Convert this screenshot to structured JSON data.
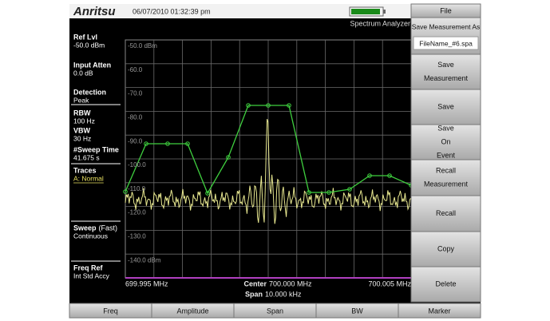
{
  "header": {
    "brand": "Anritsu",
    "datetime": "06/07/2010 01:32:39 pm",
    "mode": "Spectrum Analyzer"
  },
  "left_panel": [
    {
      "label": "Ref Lvl",
      "value": "-50.0 dBm"
    },
    {
      "label": "Input Atten",
      "value": "0.0 dB"
    },
    {
      "label": "Detection",
      "value": "Peak"
    },
    {
      "label": "RBW",
      "value": "100 Hz"
    },
    {
      "label": "VBW",
      "value": "30 Hz"
    },
    {
      "label": "#Sweep Time",
      "value": "41.675 s"
    },
    {
      "label": "Traces",
      "value": "A: Normal"
    },
    {
      "label": "Sweep",
      "note": "(Fast)",
      "value": "Continuous"
    },
    {
      "label": "Freq Ref",
      "value": "Int Std Accy"
    }
  ],
  "plot": {
    "y_labels": [
      "-50.0 dBm",
      "-60.0",
      "-70.0",
      "-80.0",
      "-90.0",
      "-100.0",
      "-110.0",
      "-120.0",
      "-130.0",
      "-140.0 dBm"
    ],
    "start": "699.995 MHz",
    "center_label": "Center",
    "center": "700.000 MHz",
    "stop": "700.005 MHz",
    "span_label": "Span",
    "span": "10.000 kHz"
  },
  "menu": {
    "title": "File",
    "buttons": [
      {
        "lines": [
          "Save Measurement As"
        ],
        "field": "FileName_#6.spa"
      },
      {
        "lines": [
          "Save",
          "Measurement"
        ]
      },
      {
        "lines": [
          "Save"
        ]
      },
      {
        "lines": [
          "Save",
          "On",
          "Event"
        ]
      },
      {
        "lines": [
          "Recall",
          "Measurement"
        ]
      },
      {
        "lines": [
          "Recall"
        ]
      },
      {
        "lines": [
          "Copy"
        ]
      },
      {
        "lines": [
          "Delete"
        ]
      }
    ]
  },
  "bottom_menu": [
    "Freq",
    "Amplitude",
    "Span",
    "BW",
    "Marker"
  ]
}
